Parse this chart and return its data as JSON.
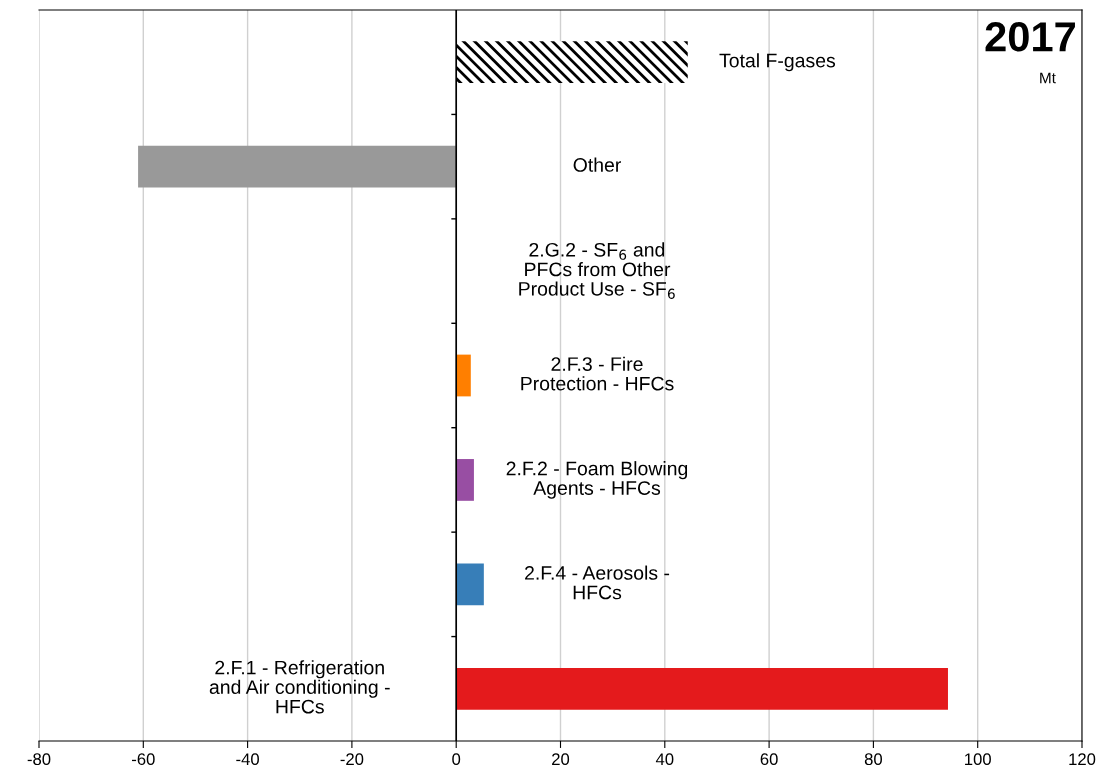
{
  "chart_data": {
    "type": "bar",
    "orientation": "horizontal",
    "title": "2017",
    "subtitle": "Mt",
    "categories": [
      "Total F-gases",
      "Other",
      "2.G.2 - SF$_{6}$ and\nPFCs from Other\nProduct Use - SF$_{6}$",
      "2.F.3 - Fire\nProtection - HFCs",
      "2.F.2 - Foam Blowing\nAgents - HFCs",
      "2.F.4 - Aerosols -\nHFCs",
      "2.F.1 - Refrigeration\nand Air conditioning -\nHFCs"
    ],
    "values": [
      44.4,
      -61.0,
      0,
      2.8,
      3.4,
      5.3,
      94.3
    ],
    "colors": [
      "#000000",
      "#999999",
      "#999999",
      "#ff7f00",
      "#984ea3",
      "#377eb8",
      "#e41a1c"
    ],
    "xlim": [
      -80,
      120
    ],
    "xticks": [
      -80,
      -60,
      -40,
      -20,
      0,
      20,
      40,
      60,
      80,
      100,
      120
    ],
    "grid": "x",
    "tick_labels": "x",
    "legend": false
  }
}
